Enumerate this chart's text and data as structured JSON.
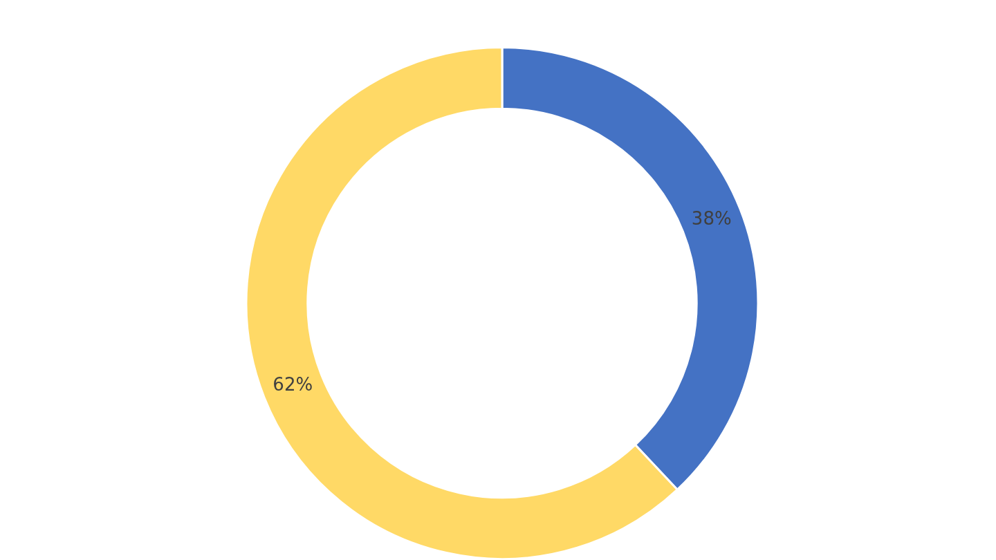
{
  "chart_data": {
    "type": "donut",
    "categories": [
      null,
      null
    ],
    "values": [
      38,
      62
    ],
    "colors": [
      "#4472c4",
      "#ffd966"
    ],
    "value_labels": [
      "38%",
      "62%"
    ],
    "legend": false
  }
}
